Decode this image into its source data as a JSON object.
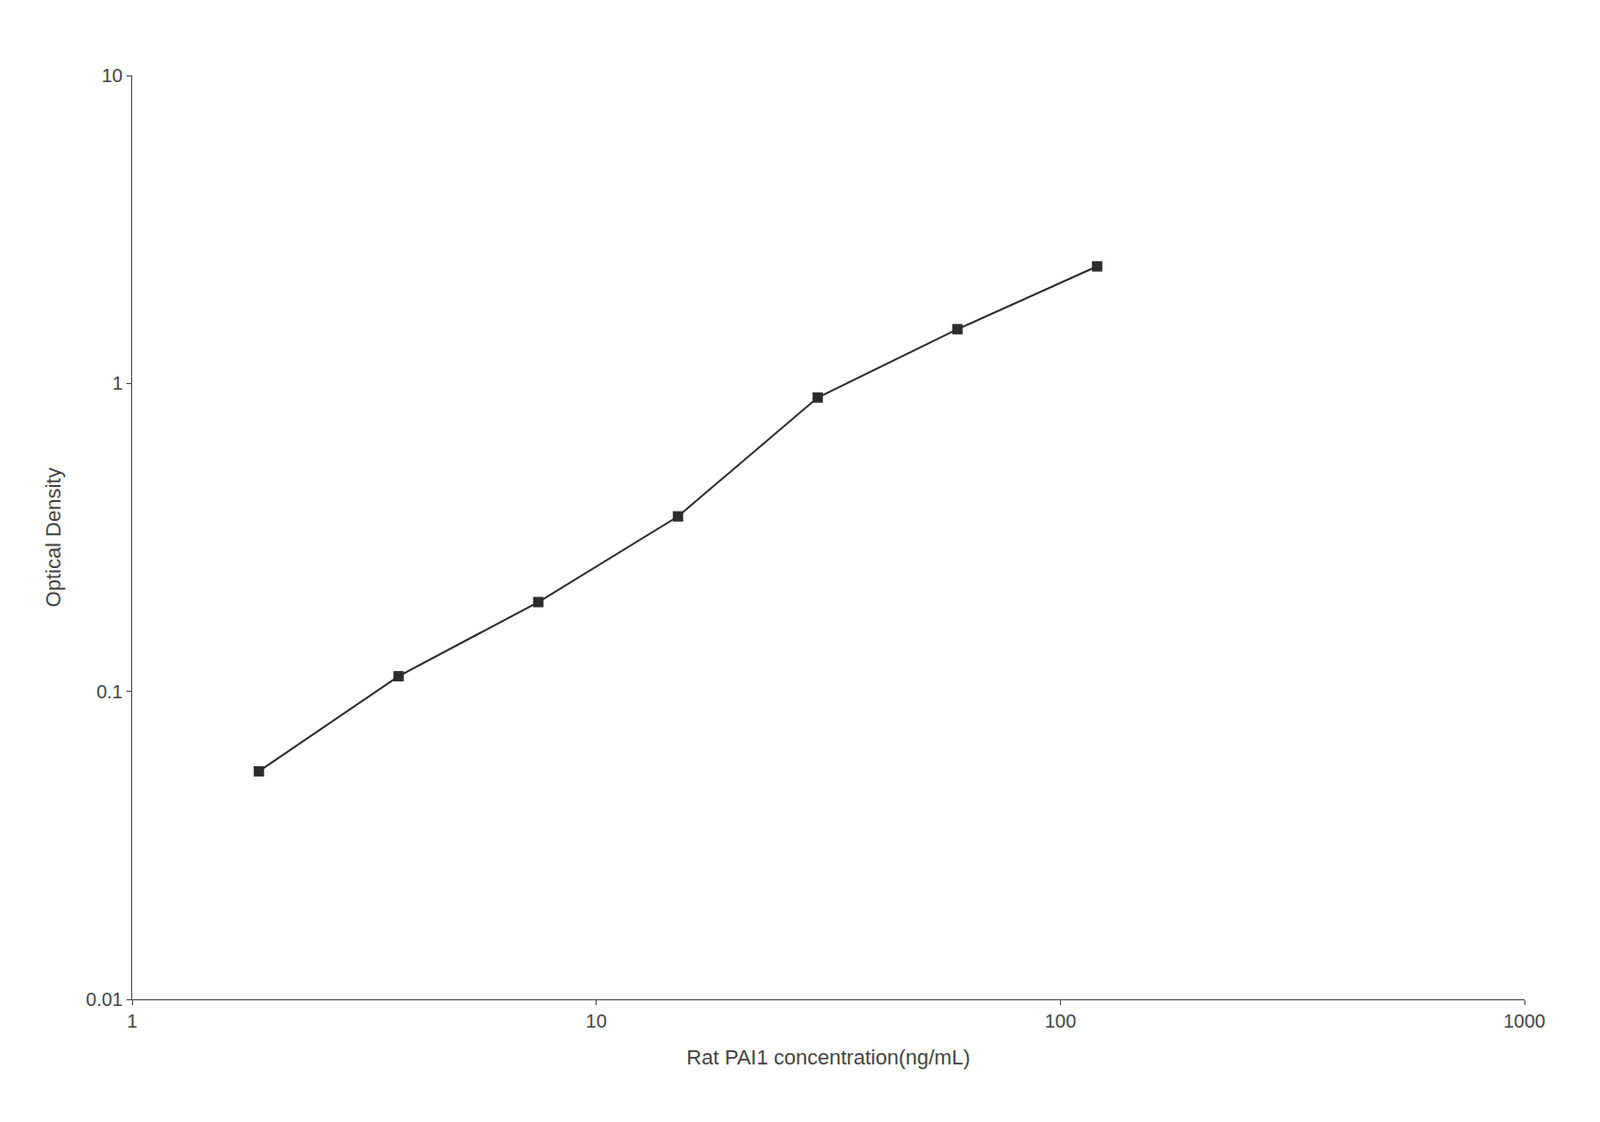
{
  "chart_data": {
    "type": "line",
    "x": [
      1.875,
      3.75,
      7.5,
      15,
      30,
      60,
      120
    ],
    "values": [
      0.055,
      0.112,
      0.195,
      0.37,
      0.9,
      1.5,
      2.4
    ],
    "xlabel": "Rat PAI1 concentration(ng/mL)",
    "ylabel": "Optical Density",
    "xlim": [
      1,
      1000
    ],
    "ylim": [
      0.01,
      10
    ],
    "xticks": [
      1,
      10,
      100,
      1000
    ],
    "yticks": [
      0.01,
      0.1,
      1,
      10
    ],
    "log": true,
    "grid": false,
    "color": "#2d2d2d",
    "marker": "square"
  }
}
